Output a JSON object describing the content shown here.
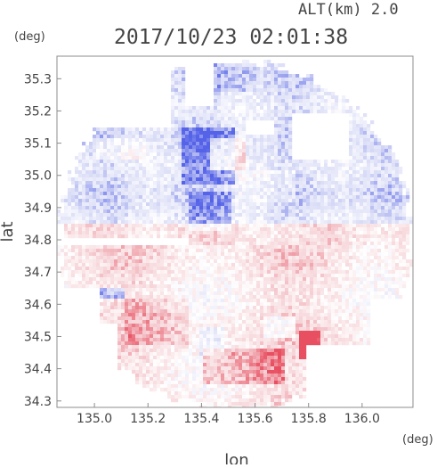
{
  "header": {
    "altitude_label": "ALT(km) 2.0",
    "timestamp": "2017/10/23 02:01:38"
  },
  "chart_data": {
    "type": "heatmap",
    "title": "2017/10/23 02:01:38",
    "subtitle": "ALT(km) 2.0",
    "xlabel": "lon",
    "ylabel": "lat",
    "x_unit": "(deg)",
    "y_unit": "(deg)",
    "xlim": [
      134.86,
      136.19
    ],
    "ylim": [
      34.28,
      35.37
    ],
    "xticks": [
      "135.0",
      "135.2",
      "135.4",
      "135.6",
      "135.8",
      "136.0"
    ],
    "yticks": [
      "34.3",
      "34.4",
      "34.5",
      "34.6",
      "34.7",
      "34.8",
      "34.9",
      "35.0",
      "35.1",
      "35.2",
      "35.3"
    ],
    "radar_center": [
      135.52,
      34.82
    ],
    "radar_radius_lon": 0.68,
    "radar_radius_lat": 0.56,
    "colormap": [
      "#5563e8",
      "#d9dcf6",
      "#ffffff",
      "#f6d4d8",
      "#e85061"
    ],
    "value_range": [
      -1,
      1
    ],
    "grid": false,
    "legend": "none",
    "regions": [
      {
        "name": "northern approaching band",
        "value": -0.45
      },
      {
        "name": "southern receding band",
        "value": 0.45
      },
      {
        "name": "strong receding core",
        "value": 0.8
      },
      {
        "name": "strong approaching core",
        "value": -0.75
      }
    ]
  }
}
